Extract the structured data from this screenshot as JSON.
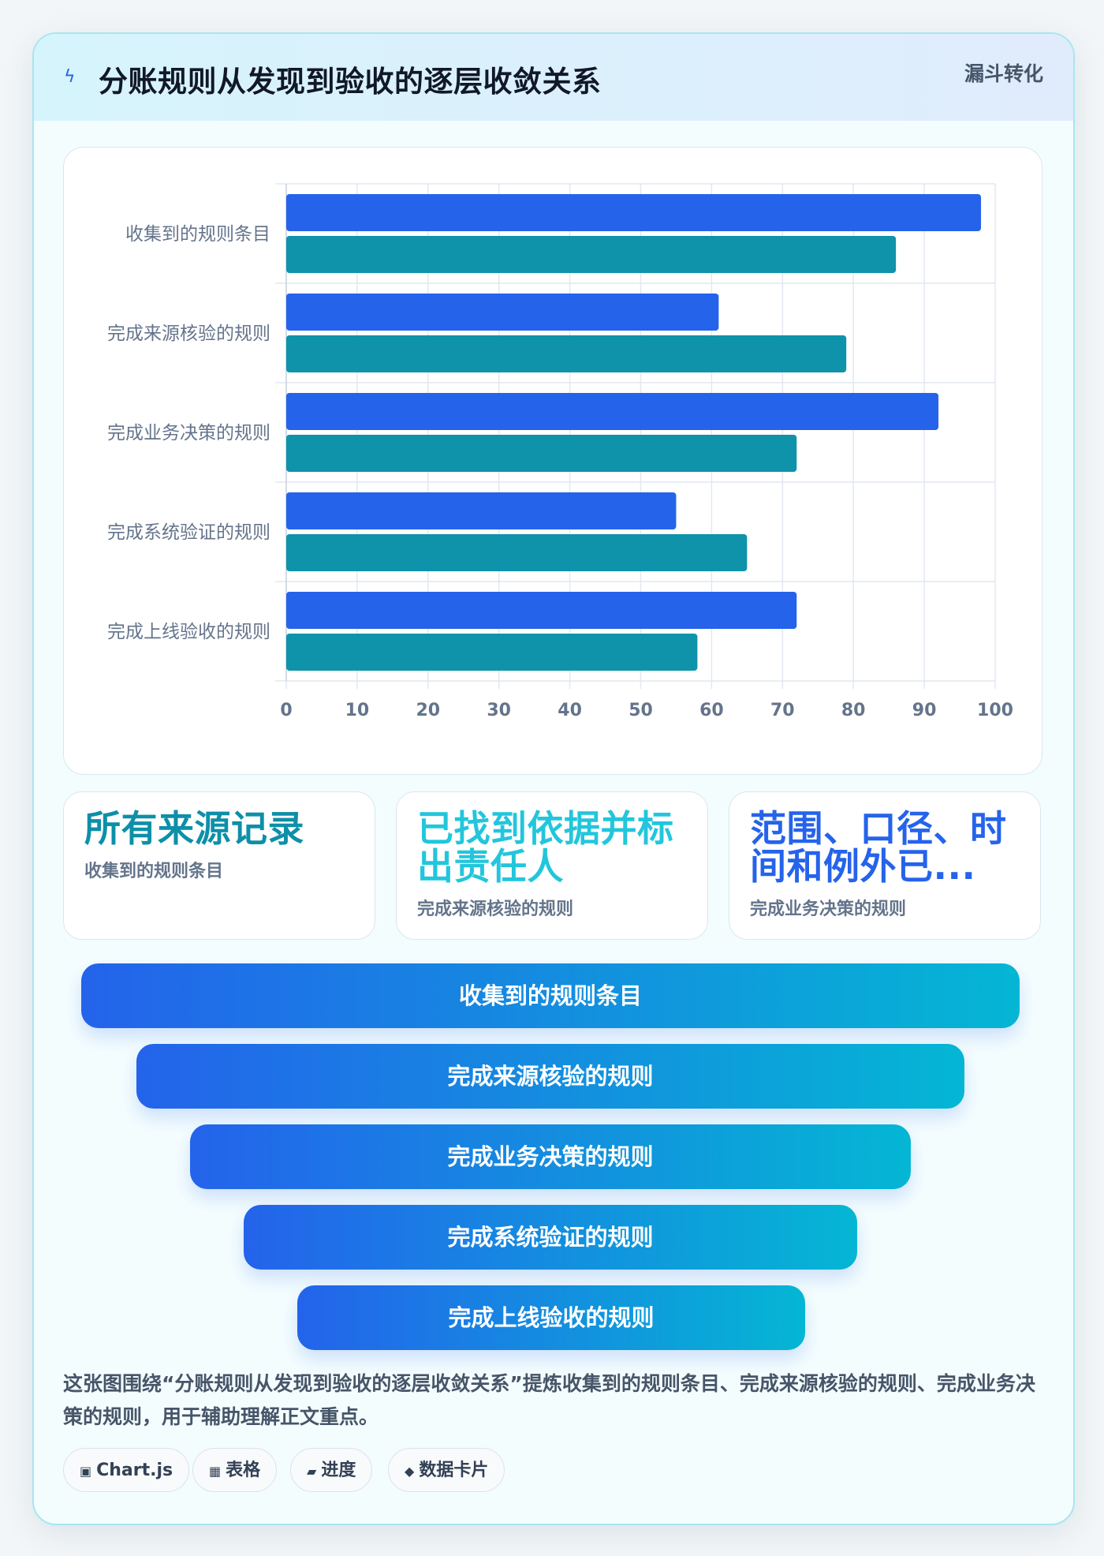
{
  "header": {
    "title": "分账规则从发现到验收的逐层收敛关系",
    "badge": "漏斗转化",
    "icon": "lightning-icon"
  },
  "chart_data": {
    "type": "bar",
    "orientation": "horizontal",
    "categories": [
      "收集到的规则条目",
      "完成来源核验的规则",
      "完成业务决策的规则",
      "完成系统验证的规则",
      "完成上线验收的规则"
    ],
    "series": [
      {
        "values": [
          98,
          61,
          92,
          55,
          72
        ],
        "color": "#2563eb"
      },
      {
        "values": [
          86,
          79,
          72,
          65,
          58
        ],
        "color": "#0e93ab"
      }
    ],
    "xlim": [
      0,
      100
    ],
    "xticks": [
      0,
      10,
      20,
      30,
      40,
      50,
      60,
      70,
      80,
      90,
      100
    ],
    "grid": true,
    "legend": "none"
  },
  "kpis": [
    {
      "value": "所有来源记录",
      "label": "收集到的规则条目",
      "color": "#0e8fa8"
    },
    {
      "value": "已找到依据并标出责任人",
      "label": "完成来源核验的规则",
      "color": "#22c6dc"
    },
    {
      "value": "范围、口径、时间和例外已...",
      "label": "完成业务决策的规则",
      "color": "#2563eb"
    }
  ],
  "funnel": [
    "收集到的规则条目",
    "完成来源核验的规则",
    "完成业务决策的规则",
    "完成系统验证的规则",
    "完成上线验收的规则"
  ],
  "summary": "这张图围绕“分账规则从发现到验收的逐层收敛关系”提炼收集到的规则条目、完成来源核验的规则、完成业务决策的规则，用于辅助理解正文重点。",
  "tags": [
    {
      "icon": "▣",
      "label": "Chart.js"
    },
    {
      "icon": "▦",
      "label": "表格"
    },
    {
      "icon": "▰",
      "label": "进度"
    },
    {
      "icon": "◆",
      "label": "数据卡片"
    }
  ]
}
